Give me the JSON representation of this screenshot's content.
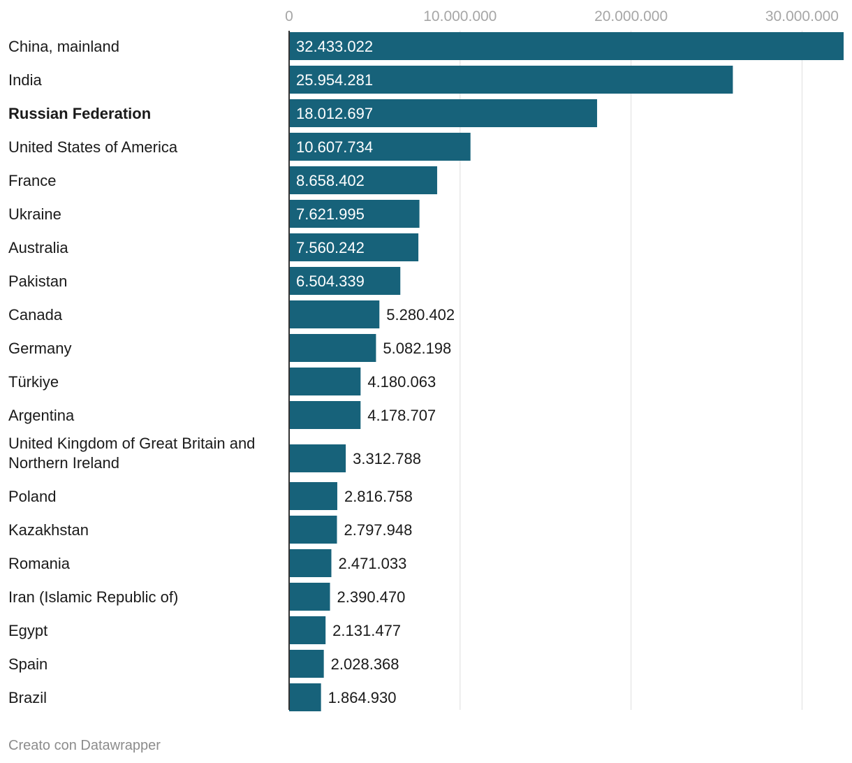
{
  "chart_data": {
    "type": "bar",
    "orientation": "horizontal",
    "categories": [
      "China, mainland",
      "India",
      "Russian Federation",
      "United States of America",
      "France",
      "Ukraine",
      "Australia",
      "Pakistan",
      "Canada",
      "Germany",
      "Türkiye",
      "Argentina",
      "United Kingdom of Great Britain and Northern Ireland",
      "Poland",
      "Kazakhstan",
      "Romania",
      "Iran (Islamic Republic of)",
      "Egypt",
      "Spain",
      "Brazil"
    ],
    "values": [
      32433022,
      25954281,
      18012697,
      10607734,
      8658402,
      7621995,
      7560242,
      6504339,
      5280402,
      5082198,
      4180063,
      4178707,
      3312788,
      2816758,
      2797948,
      2471033,
      2390470,
      2131477,
      2028368,
      1864930
    ],
    "value_labels": [
      "32.433.022",
      "25.954.281",
      "18.012.697",
      "10.607.734",
      "8.658.402",
      "7.621.995",
      "7.560.242",
      "6.504.339",
      "5.280.402",
      "5.082.198",
      "4.180.063",
      "4.178.707",
      "3.312.788",
      "2.816.758",
      "2.797.948",
      "2.471.033",
      "2.390.470",
      "2.131.477",
      "2.028.368",
      "1.864.930"
    ],
    "highlighted_category": "Russian Federation",
    "xticks": [
      0,
      10000000,
      20000000,
      30000000
    ],
    "xtick_labels": [
      "0",
      "10.000.000",
      "20.000.000",
      "30.000.000"
    ],
    "xlim": [
      0,
      32433022
    ],
    "grid": true,
    "bar_color": "#17627a",
    "title": "",
    "xlabel": "",
    "ylabel": ""
  },
  "footer": {
    "credit": "Creato con Datawrapper"
  }
}
